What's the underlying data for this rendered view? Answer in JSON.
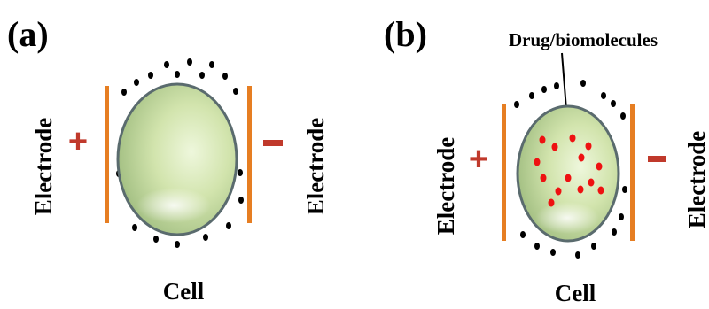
{
  "panel_a": {
    "label": "(a)",
    "left_electrode_label": "Electrode",
    "right_electrode_label": "Electrode",
    "positive_sign": "+",
    "negative_sign": "-",
    "cell_label": "Cell"
  },
  "panel_b": {
    "label": "(b)",
    "callout_label": "Drug/biomolecules",
    "left_electrode_label": "Electrode",
    "right_electrode_label": "Electrode",
    "positive_sign": "+",
    "negative_sign": "-",
    "cell_label": "Cell"
  },
  "colors": {
    "electrode": "#e67e22",
    "sign": "#c0392b",
    "drug": "#ee1111",
    "cell_edge": "#5a6b6e",
    "cell_fill_light": "#e4f2c8",
    "cell_fill_dark": "#9ab57c"
  }
}
